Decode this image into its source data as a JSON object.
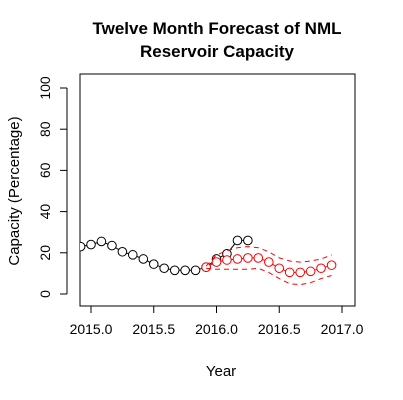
{
  "chart_data": {
    "type": "line",
    "title_line1": "Twelve Month Forecast of NML",
    "title_line2": "Reservoir Capacity",
    "xlabel": "Year",
    "ylabel": "Capacity (Percentage)",
    "xlim": [
      2014.92,
      2017.0
    ],
    "ylim": [
      0,
      100
    ],
    "xticks": [
      {
        "value": 2015.0,
        "label": "2015.0"
      },
      {
        "value": 2015.5,
        "label": "2015.5"
      },
      {
        "value": 2016.0,
        "label": "2016.0"
      },
      {
        "value": 2016.5,
        "label": "2016.5"
      },
      {
        "value": 2017.0,
        "label": "2017.0"
      }
    ],
    "yticks": [
      {
        "value": 0,
        "label": "0"
      },
      {
        "value": 20,
        "label": "20"
      },
      {
        "value": 40,
        "label": "40"
      },
      {
        "value": 60,
        "label": "60"
      },
      {
        "value": 80,
        "label": "80"
      },
      {
        "value": 100,
        "label": "100"
      }
    ],
    "series": [
      {
        "color": "#000000",
        "style": "line-with-circles",
        "x": [
          2014.917,
          2015.0,
          2015.083,
          2015.167,
          2015.25,
          2015.333,
          2015.417,
          2015.5,
          2015.583,
          2015.667,
          2015.75,
          2015.833,
          2015.917,
          2016.0,
          2016.083,
          2016.167,
          2016.25
        ],
        "y": [
          23,
          24,
          25.5,
          23.5,
          20.5,
          19,
          17,
          14.5,
          12.5,
          11.5,
          11.5,
          11.5,
          13,
          17,
          19.5,
          26,
          26
        ]
      },
      {
        "color": "#ff0000",
        "style": "line-with-circles",
        "x": [
          2015.917,
          2016.0,
          2016.083,
          2016.167,
          2016.25,
          2016.333,
          2016.417,
          2016.5,
          2016.583,
          2016.667,
          2016.75,
          2016.833,
          2016.917
        ],
        "y": [
          13,
          15.5,
          16.5,
          17,
          17.5,
          17.5,
          15.5,
          12.5,
          10.5,
          10.5,
          11,
          12.5,
          14
        ]
      },
      {
        "color": "#ff0000",
        "style": "dashed",
        "x": [
          2015.917,
          2016.0,
          2016.083,
          2016.167,
          2016.25,
          2016.333,
          2016.417,
          2016.5,
          2016.583,
          2016.667,
          2016.75,
          2016.833,
          2016.917
        ],
        "y": [
          13.5,
          19,
          21,
          22.5,
          23,
          22.5,
          20.5,
          17.5,
          16,
          15.5,
          16,
          17,
          19
        ]
      },
      {
        "color": "#ff0000",
        "style": "dashed",
        "x": [
          2015.917,
          2016.0,
          2016.083,
          2016.167,
          2016.25,
          2016.333,
          2016.417,
          2016.5,
          2016.583,
          2016.667,
          2016.75,
          2016.833,
          2016.917
        ],
        "y": [
          12.5,
          12,
          12,
          12,
          12,
          12.5,
          10.5,
          7.5,
          5,
          4.5,
          5.5,
          7.5,
          9
        ]
      }
    ]
  }
}
